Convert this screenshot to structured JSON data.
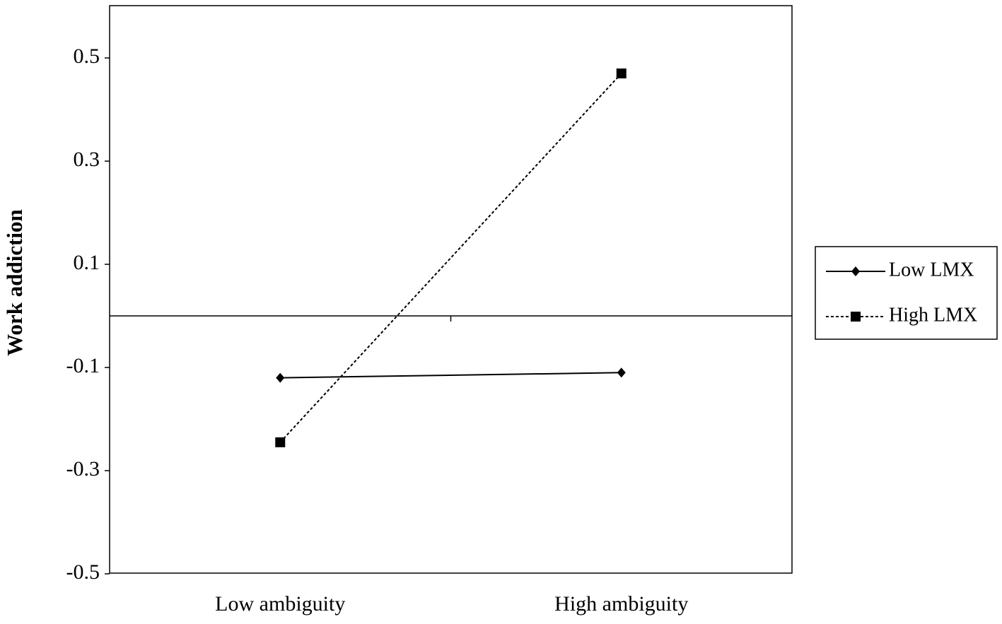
{
  "chart_data": {
    "type": "line",
    "y_label": "Work addiction",
    "categories": [
      "Low ambiguity",
      "High ambiguity"
    ],
    "series": [
      {
        "name": "Low LMX",
        "color": "#000000",
        "dashed": false,
        "marker": "diamond",
        "values": [
          -0.12,
          -0.11
        ]
      },
      {
        "name": "High LMX",
        "color": "#000000",
        "dashed": true,
        "marker": "square",
        "values": [
          -0.245,
          0.47
        ]
      }
    ],
    "ylim": [
      -0.5,
      0.6
    ],
    "yticks": [
      -0.5,
      -0.3,
      -0.1,
      0.1,
      0.3,
      0.5
    ],
    "legend": "right"
  }
}
